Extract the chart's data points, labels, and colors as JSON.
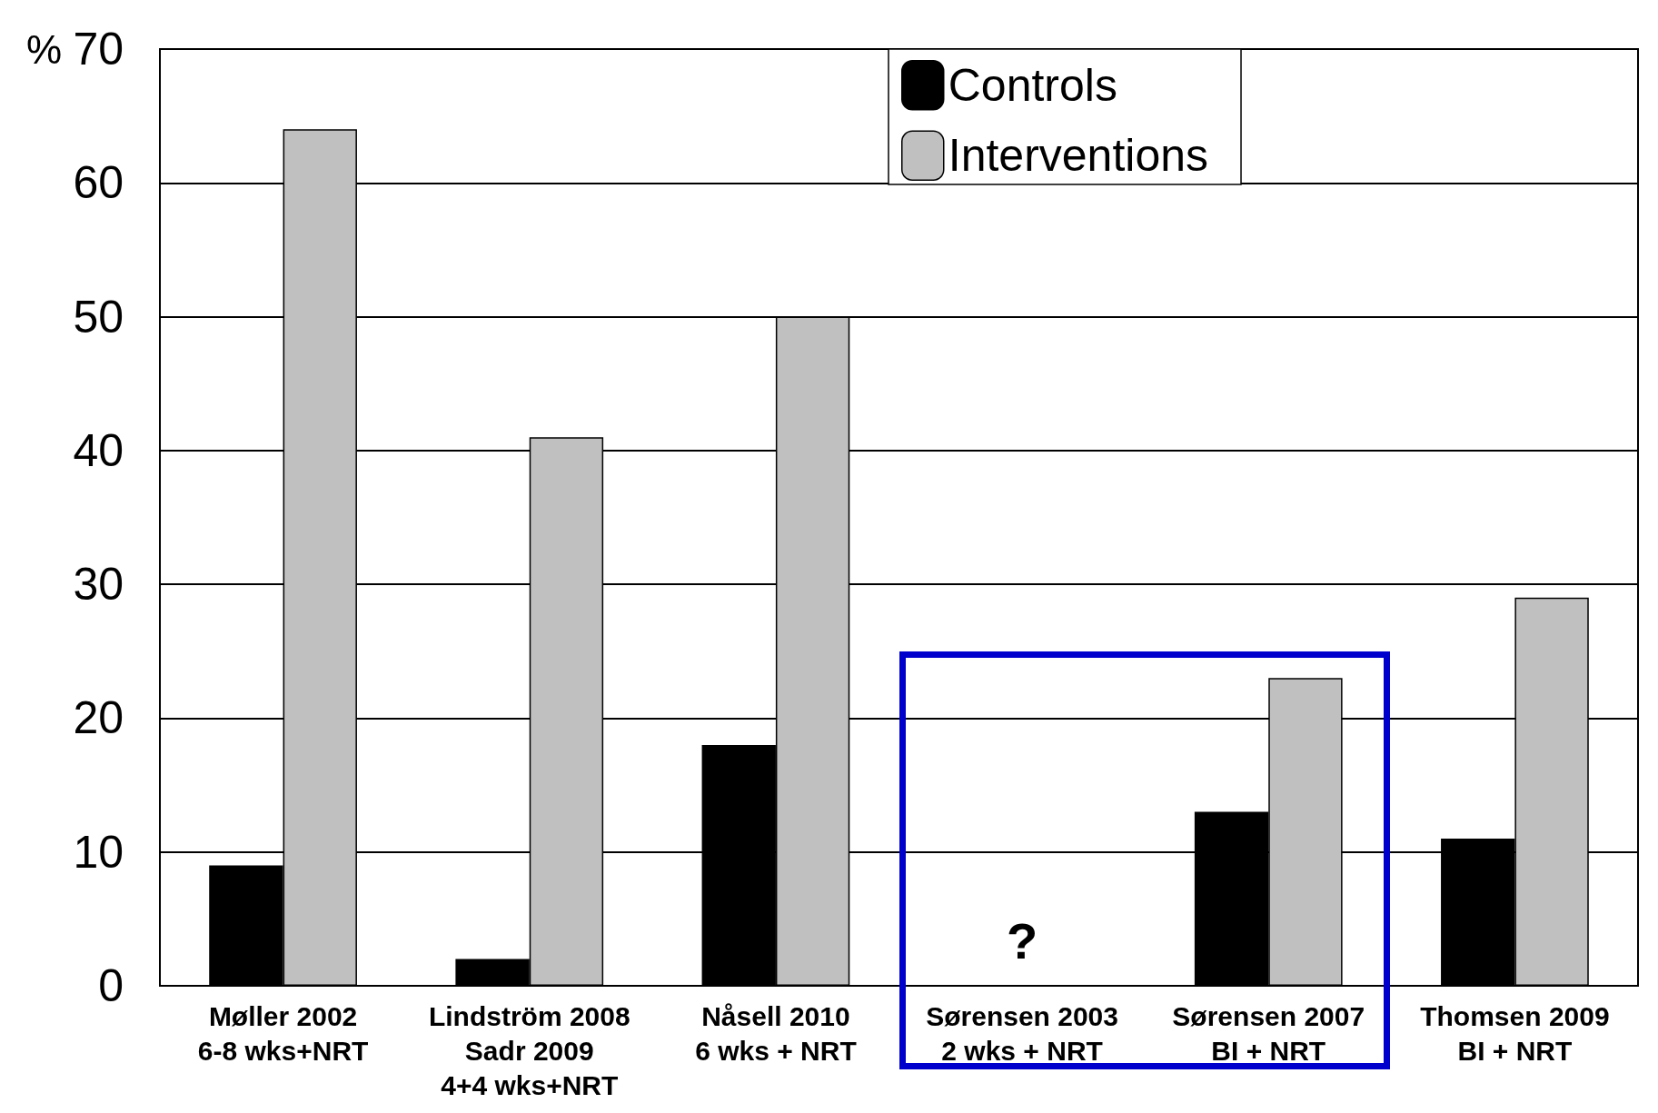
{
  "chart_data": {
    "type": "bar",
    "ylabel": "%",
    "categories": [
      "Møller 2002\n6-8 wks+NRT",
      "Lindström 2008\nSadr 2009\n4+4 wks+NRT",
      "Nåsell 2010\n6 wks + NRT",
      "Sørensen 2003\n2 wks + NRT",
      "Sørensen 2007\nBI + NRT",
      "Thomsen 2009\nBI + NRT"
    ],
    "series": [
      {
        "name": "Controls",
        "color": "#000000",
        "values": [
          9,
          2,
          18,
          null,
          13,
          11
        ]
      },
      {
        "name": "Interventions",
        "color": "#c0c0c0",
        "values": [
          64,
          41,
          50,
          null,
          23,
          29
        ]
      }
    ],
    "ylim": [
      0,
      70
    ],
    "yticks": [
      0,
      10,
      20,
      30,
      40,
      50,
      60,
      70
    ],
    "grid": "y",
    "legend": "top",
    "annotations": [
      "?"
    ]
  }
}
